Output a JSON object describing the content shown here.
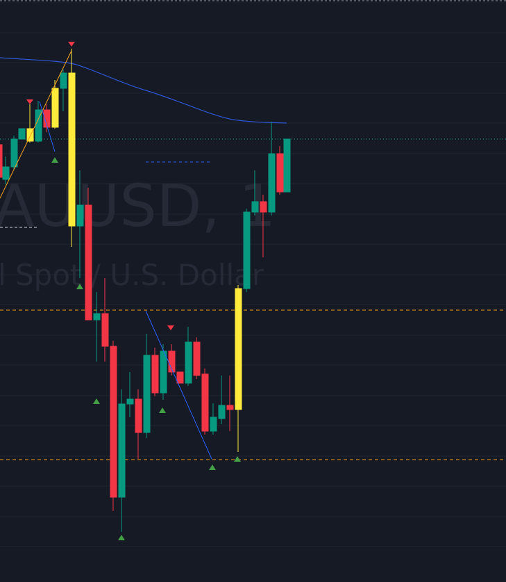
{
  "watermark": {
    "symbol": "AUUSD, 1",
    "description": "l Spot / U.S. Dollar"
  }
}
